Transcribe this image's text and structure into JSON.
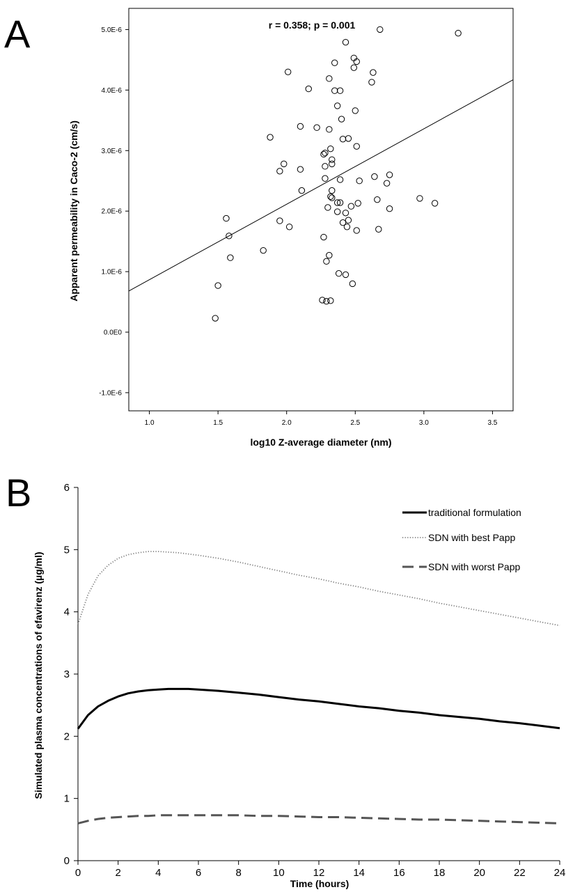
{
  "chart_data": [
    {
      "panel": "A",
      "type": "scatter",
      "annotation": "r = 0.358; p = 0.001",
      "xlabel": "log10 Z-average diameter (nm)",
      "ylabel": "Apparent permeability in Caco-2 (cm/s)",
      "xlim": [
        0.85,
        3.65
      ],
      "ylim": [
        -1.3e-06,
        5.35e-06
      ],
      "xticks": [
        1.0,
        1.5,
        2.0,
        2.5,
        3.0,
        3.5
      ],
      "xtick_labels": [
        "1.0",
        "1.5",
        "2.0",
        "2.5",
        "3.0",
        "3.5"
      ],
      "yticks": [
        -1e-06,
        0,
        1e-06,
        2e-06,
        3e-06,
        4e-06,
        5e-06
      ],
      "ytick_labels": [
        "-1.0E-6",
        "0.0E0",
        "1.0E-6",
        "2.0E-6",
        "3.0E-6",
        "4.0E-6",
        "5.0E-6"
      ],
      "grid": false,
      "points": [
        [
          1.48,
          2.3e-07
        ],
        [
          1.5,
          7.7e-07
        ],
        [
          1.56,
          1.88e-06
        ],
        [
          1.58,
          1.59e-06
        ],
        [
          1.59,
          1.23e-06
        ],
        [
          1.83,
          1.35e-06
        ],
        [
          1.88,
          3.22e-06
        ],
        [
          1.95,
          1.84e-06
        ],
        [
          1.95,
          2.66e-06
        ],
        [
          1.98,
          2.78e-06
        ],
        [
          2.01,
          4.3e-06
        ],
        [
          2.02,
          1.74e-06
        ],
        [
          2.1,
          3.4e-06
        ],
        [
          2.1,
          2.69e-06
        ],
        [
          2.11,
          2.34e-06
        ],
        [
          2.16,
          4.02e-06
        ],
        [
          2.22,
          3.38e-06
        ],
        [
          2.26,
          5.3e-07
        ],
        [
          2.27,
          2.94e-06
        ],
        [
          2.27,
          1.57e-06
        ],
        [
          2.28,
          2.96e-06
        ],
        [
          2.28,
          2.54e-06
        ],
        [
          2.28,
          2.74e-06
        ],
        [
          2.29,
          1.17e-06
        ],
        [
          2.29,
          5.1e-07
        ],
        [
          2.3,
          2.06e-06
        ],
        [
          2.31,
          1.27e-06
        ],
        [
          2.31,
          3.35e-06
        ],
        [
          2.31,
          4.19e-06
        ],
        [
          2.32,
          2.24e-06
        ],
        [
          2.32,
          5.2e-07
        ],
        [
          2.32,
          3.03e-06
        ],
        [
          2.33,
          2.34e-06
        ],
        [
          2.33,
          2.22e-06
        ],
        [
          2.33,
          2.85e-06
        ],
        [
          2.33,
          2.78e-06
        ],
        [
          2.35,
          3.99e-06
        ],
        [
          2.35,
          4.45e-06
        ],
        [
          2.37,
          3.74e-06
        ],
        [
          2.37,
          2.14e-06
        ],
        [
          2.37,
          1.99e-06
        ],
        [
          2.38,
          9.7e-07
        ],
        [
          2.39,
          2.14e-06
        ],
        [
          2.39,
          2.52e-06
        ],
        [
          2.39,
          3.99e-06
        ],
        [
          2.4,
          3.52e-06
        ],
        [
          2.41,
          3.19e-06
        ],
        [
          2.41,
          1.81e-06
        ],
        [
          2.43,
          9.5e-07
        ],
        [
          2.43,
          1.97e-06
        ],
        [
          2.43,
          4.79e-06
        ],
        [
          2.44,
          1.74e-06
        ],
        [
          2.45,
          1.85e-06
        ],
        [
          2.45,
          3.2e-06
        ],
        [
          2.47,
          2.08e-06
        ],
        [
          2.48,
          8e-07
        ],
        [
          2.49,
          4.53e-06
        ],
        [
          2.49,
          4.37e-06
        ],
        [
          2.5,
          3.66e-06
        ],
        [
          2.51,
          3.07e-06
        ],
        [
          2.51,
          1.68e-06
        ],
        [
          2.51,
          4.47e-06
        ],
        [
          2.52,
          2.13e-06
        ],
        [
          2.53,
          2.5e-06
        ],
        [
          2.62,
          4.13e-06
        ],
        [
          2.63,
          4.29e-06
        ],
        [
          2.64,
          2.57e-06
        ],
        [
          2.66,
          2.19e-06
        ],
        [
          2.67,
          1.7e-06
        ],
        [
          2.68,
          5e-06
        ],
        [
          2.73,
          2.46e-06
        ],
        [
          2.75,
          2.04e-06
        ],
        [
          2.75,
          2.6e-06
        ],
        [
          2.97,
          2.21e-06
        ],
        [
          3.08,
          2.13e-06
        ],
        [
          3.25,
          4.94e-06
        ]
      ],
      "fit_line": {
        "x": [
          0.85,
          3.65
        ],
        "y": [
          6.8e-07,
          4.17e-06
        ]
      }
    },
    {
      "panel": "B",
      "type": "line",
      "xlabel": "Time (hours)",
      "ylabel": "Simulated plasma concentrations of efavirenz (µg/ml)",
      "xlim": [
        0,
        24
      ],
      "ylim": [
        0,
        6
      ],
      "xticks": [
        0,
        2,
        4,
        6,
        8,
        10,
        12,
        14,
        16,
        18,
        20,
        22,
        24
      ],
      "yticks": [
        0,
        1,
        2,
        3,
        4,
        5,
        6
      ],
      "grid": false,
      "legend_position": "top-right",
      "x": [
        0,
        0.5,
        1,
        1.5,
        2,
        2.5,
        3,
        3.5,
        4,
        4.5,
        5,
        5.5,
        6,
        7,
        8,
        9,
        10,
        11,
        12,
        13,
        14,
        15,
        16,
        17,
        18,
        19,
        20,
        21,
        22,
        23,
        24
      ],
      "series": [
        {
          "name": "traditional formulation",
          "style": "solid",
          "color": "#000000",
          "values": [
            2.12,
            2.34,
            2.48,
            2.57,
            2.64,
            2.69,
            2.72,
            2.74,
            2.75,
            2.76,
            2.76,
            2.76,
            2.75,
            2.73,
            2.7,
            2.67,
            2.63,
            2.59,
            2.56,
            2.52,
            2.48,
            2.45,
            2.41,
            2.38,
            2.34,
            2.31,
            2.28,
            2.24,
            2.21,
            2.17,
            2.13
          ]
        },
        {
          "name": "SDN with best Papp",
          "style": "dotted",
          "color": "#7a7a7a",
          "values": [
            3.8,
            4.28,
            4.58,
            4.75,
            4.86,
            4.92,
            4.95,
            4.97,
            4.97,
            4.96,
            4.95,
            4.93,
            4.91,
            4.86,
            4.8,
            4.73,
            4.66,
            4.59,
            4.53,
            4.46,
            4.4,
            4.33,
            4.27,
            4.21,
            4.14,
            4.08,
            4.02,
            3.96,
            3.9,
            3.84,
            3.78
          ]
        },
        {
          "name": "SDN with worst Papp",
          "style": "dashed",
          "color": "#555555",
          "values": [
            0.6,
            0.64,
            0.67,
            0.69,
            0.7,
            0.71,
            0.72,
            0.72,
            0.73,
            0.73,
            0.73,
            0.73,
            0.73,
            0.73,
            0.73,
            0.72,
            0.72,
            0.71,
            0.7,
            0.7,
            0.69,
            0.68,
            0.67,
            0.66,
            0.66,
            0.65,
            0.64,
            0.63,
            0.62,
            0.61,
            0.6
          ]
        }
      ]
    }
  ],
  "labels": {
    "panel_a": "A",
    "panel_b": "B"
  }
}
